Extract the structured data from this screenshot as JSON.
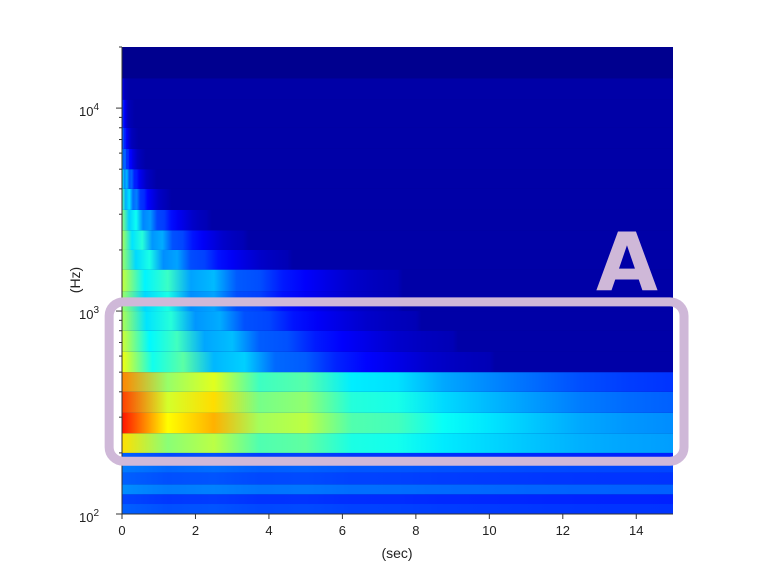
{
  "chart_data": {
    "type": "heatmap",
    "title": "",
    "xlabel": "(sec)",
    "ylabel": "(Hz)",
    "xlim": [
      0,
      15
    ],
    "ylim": [
      100,
      20000
    ],
    "y_scale": "log",
    "x_ticks": [
      {
        "value": 0,
        "label": "0"
      },
      {
        "value": 2,
        "label": "2"
      },
      {
        "value": 4,
        "label": "4"
      },
      {
        "value": 6,
        "label": "6"
      },
      {
        "value": 8,
        "label": "8"
      },
      {
        "value": 10,
        "label": "10"
      },
      {
        "value": 12,
        "label": "12"
      },
      {
        "value": 14,
        "label": "14"
      }
    ],
    "y_ticks": [
      {
        "value": 100,
        "base": "10",
        "exp": "2"
      },
      {
        "value": 1000,
        "base": "10",
        "exp": "3"
      },
      {
        "value": 10000,
        "base": "10",
        "exp": "4"
      }
    ],
    "colormap": [
      "#00008f",
      "#0000ff",
      "#0080ff",
      "#00ffff",
      "#80ff80",
      "#ffff00",
      "#ff8000",
      "#ff0000"
    ],
    "background_color": "#00008f",
    "bands": [
      {
        "f_low": 100,
        "f_high": 112,
        "decay_end": 15,
        "peak": 0.25,
        "floor": 0.2
      },
      {
        "f_low": 112,
        "f_high": 125,
        "decay_end": 15,
        "peak": 0.22,
        "floor": 0.18
      },
      {
        "f_low": 125,
        "f_high": 140,
        "decay_end": 15,
        "peak": 0.3,
        "floor": 0.25
      },
      {
        "f_low": 140,
        "f_high": 160,
        "decay_end": 15,
        "peak": 0.25,
        "floor": 0.2
      },
      {
        "f_low": 160,
        "f_high": 178,
        "decay_end": 15,
        "peak": 0.28,
        "floor": 0.22
      },
      {
        "f_low": 178,
        "f_high": 200,
        "decay_end": 15,
        "peak": 0.25,
        "floor": 0.18
      },
      {
        "f_low": 200,
        "f_high": 250,
        "decay_end": 15,
        "peak": 0.75,
        "floor": 0.32
      },
      {
        "f_low": 250,
        "f_high": 315,
        "decay_end": 15,
        "peak": 0.98,
        "floor": 0.3
      },
      {
        "f_low": 315,
        "f_high": 400,
        "decay_end": 15,
        "peak": 0.93,
        "floor": 0.25
      },
      {
        "f_low": 400,
        "f_high": 500,
        "decay_end": 15,
        "peak": 0.85,
        "floor": 0.2
      },
      {
        "f_low": 500,
        "f_high": 630,
        "decay_end": 10,
        "peak": 0.7,
        "floor": 0.05
      },
      {
        "f_low": 630,
        "f_high": 800,
        "decay_end": 9,
        "peak": 0.66,
        "floor": 0.05
      },
      {
        "f_low": 800,
        "f_high": 1000,
        "decay_end": 8,
        "peak": 0.62,
        "floor": 0.05
      },
      {
        "f_low": 1000,
        "f_high": 1250,
        "decay_end": 7.5,
        "peak": 0.6,
        "floor": 0.05
      },
      {
        "f_low": 1250,
        "f_high": 1600,
        "decay_end": 7.5,
        "peak": 0.65,
        "floor": 0.05
      },
      {
        "f_low": 1600,
        "f_high": 2000,
        "decay_end": 4.5,
        "peak": 0.6,
        "floor": 0.05
      },
      {
        "f_low": 2000,
        "f_high": 2500,
        "decay_end": 3.3,
        "peak": 0.62,
        "floor": 0.05
      },
      {
        "f_low": 2500,
        "f_high": 3150,
        "decay_end": 2.3,
        "peak": 0.58,
        "floor": 0.05
      },
      {
        "f_low": 3150,
        "f_high": 4000,
        "decay_end": 1.2,
        "peak": 0.52,
        "floor": 0.05
      },
      {
        "f_low": 4000,
        "f_high": 5000,
        "decay_end": 0.8,
        "peak": 0.45,
        "floor": 0.05
      },
      {
        "f_low": 5000,
        "f_high": 6300,
        "decay_end": 0.5,
        "peak": 0.35,
        "floor": 0.05
      },
      {
        "f_low": 6300,
        "f_high": 8000,
        "decay_end": 0.3,
        "peak": 0.3,
        "floor": 0.05
      },
      {
        "f_low": 8000,
        "f_high": 11000,
        "decay_end": 0.2,
        "peak": 0.25,
        "floor": 0.05
      },
      {
        "f_low": 11000,
        "f_high": 14000,
        "decay_end": 0.08,
        "peak": 0.2,
        "floor": 0.05
      }
    ],
    "annotation": {
      "label": "A",
      "region": {
        "x_min": -0.35,
        "x_max": 15.3,
        "f_min": 182,
        "f_max": 1110
      },
      "color": "#cfb8d8"
    }
  }
}
